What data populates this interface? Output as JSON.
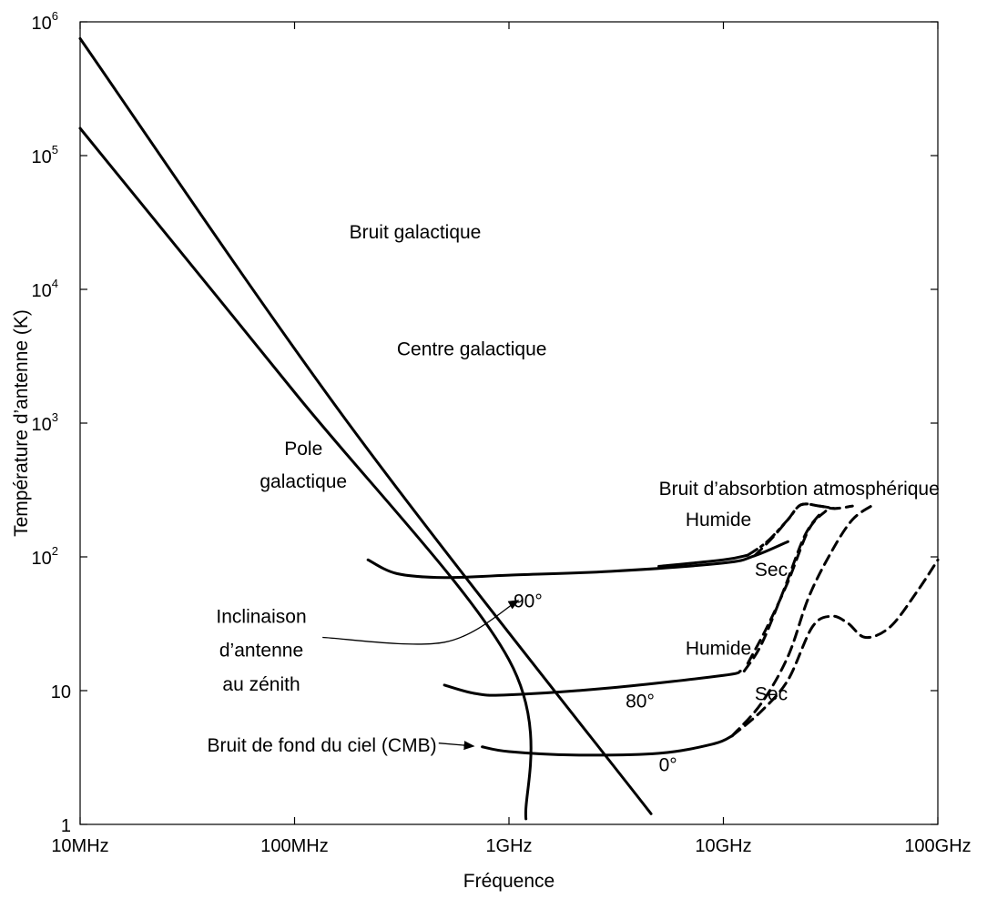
{
  "chart_data": {
    "type": "line",
    "xlabel": "Fréquence",
    "ylabel": "Température d’antenne (K)",
    "x_scale": "log",
    "y_scale": "log",
    "xlim_hz": [
      10000000.0,
      100000000000.0
    ],
    "ylim_k": [
      1,
      1000000.0
    ],
    "grid": false,
    "x_ticks": [
      {
        "value": 10000000.0,
        "label": "10MHz"
      },
      {
        "value": 100000000.0,
        "label": "100MHz"
      },
      {
        "value": 1000000000.0,
        "label": "1GHz"
      },
      {
        "value": 10000000000.0,
        "label": "10GHz"
      },
      {
        "value": 100000000000.0,
        "label": "100GHz"
      }
    ],
    "y_ticks": [
      {
        "value": 1,
        "label": "1",
        "exp": ""
      },
      {
        "value": 10,
        "label": "10",
        "exp": ""
      },
      {
        "value": 100,
        "label": "10",
        "exp": "2"
      },
      {
        "value": 1000,
        "label": "10",
        "exp": "3"
      },
      {
        "value": 10000,
        "label": "10",
        "exp": "4"
      },
      {
        "value": 100000,
        "label": "10",
        "exp": "5"
      },
      {
        "value": 1000000,
        "label": "10",
        "exp": "6"
      }
    ],
    "series": [
      {
        "style": "solid",
        "points": [
          [
            10000000.0,
            750000
          ],
          [
            178000000.0,
            1000
          ],
          [
            4600000000.0,
            1.2
          ]
        ]
      },
      {
        "style": "solid",
        "points": [
          [
            10000000.0,
            160000
          ],
          [
            100000000.0,
            1700
          ],
          [
            1000000000.0,
            17
          ],
          [
            1200000000.0,
            1.1
          ]
        ]
      },
      {
        "style": "solid",
        "points": [
          [
            220000000.0,
            95
          ],
          [
            300000000.0,
            75
          ],
          [
            500000000.0,
            70
          ],
          [
            1000000000.0,
            73
          ],
          [
            3000000000.0,
            78
          ],
          [
            10000000000.0,
            90
          ],
          [
            14000000000.0,
            102
          ],
          [
            20000000000.0,
            130
          ]
        ]
      },
      {
        "style": "solid",
        "points": [
          [
            5000000000.0,
            85
          ],
          [
            10000000000.0,
            95
          ],
          [
            13000000000.0,
            103
          ]
        ]
      },
      {
        "style": "solid",
        "points": [
          [
            500000000.0,
            11
          ],
          [
            700000000.0,
            9.5
          ],
          [
            1000000000.0,
            9.3
          ],
          [
            3000000000.0,
            10.5
          ],
          [
            10000000000.0,
            13
          ],
          [
            12000000000.0,
            14
          ]
        ]
      },
      {
        "style": "solid",
        "points": [
          [
            750000000.0,
            3.8
          ],
          [
            1000000000.0,
            3.5
          ],
          [
            2000000000.0,
            3.3
          ],
          [
            5000000000.0,
            3.4
          ],
          [
            9000000000.0,
            4
          ],
          [
            11000000000.0,
            4.6
          ]
        ]
      },
      {
        "style": "dashed",
        "points": [
          [
            14000000000.0,
            102
          ],
          [
            17000000000.0,
            140
          ],
          [
            20000000000.0,
            190
          ],
          [
            23000000000.0,
            245
          ],
          [
            28000000000.0,
            240
          ],
          [
            33000000000.0,
            230
          ],
          [
            40000000000.0,
            240
          ]
        ]
      },
      {
        "style": "dashdot",
        "points": [
          [
            13000000000.0,
            103
          ],
          [
            16000000000.0,
            130
          ],
          [
            20000000000.0,
            190
          ],
          [
            23000000000.0,
            245
          ],
          [
            28000000000.0,
            240
          ],
          [
            33000000000.0,
            230
          ]
        ]
      },
      {
        "style": "dashed",
        "points": [
          [
            13000000000.0,
            16
          ],
          [
            16000000000.0,
            30
          ],
          [
            20000000000.0,
            65
          ],
          [
            25000000000.0,
            160
          ],
          [
            30000000000.0,
            220
          ]
        ]
      },
      {
        "style": "dashed",
        "points": [
          [
            12500000000.0,
            14
          ],
          [
            15000000000.0,
            22
          ],
          [
            19000000000.0,
            55
          ],
          [
            24000000000.0,
            145
          ],
          [
            29000000000.0,
            220
          ]
        ]
      },
      {
        "style": "dashed",
        "points": [
          [
            11000000000.0,
            4.6
          ],
          [
            15000000000.0,
            7
          ],
          [
            20000000000.0,
            12
          ],
          [
            26000000000.0,
            30
          ],
          [
            32000000000.0,
            36
          ],
          [
            38000000000.0,
            32
          ],
          [
            46000000000.0,
            25
          ],
          [
            60000000000.0,
            30
          ],
          [
            80000000000.0,
            55
          ],
          [
            100000000000.0,
            95
          ]
        ]
      },
      {
        "style": "dashed",
        "points": [
          [
            11000000000.0,
            4.6
          ],
          [
            15000000000.0,
            8
          ],
          [
            20000000000.0,
            18
          ],
          [
            25000000000.0,
            50
          ],
          [
            32000000000.0,
            110
          ],
          [
            40000000000.0,
            190
          ],
          [
            50000000000.0,
            245
          ]
        ]
      }
    ],
    "annotations": [
      {
        "text": "Bruit galactique",
        "x": 180000000.0,
        "y": 24000,
        "anchor": "start"
      },
      {
        "text": "Centre galactique",
        "x": 300000000.0,
        "y": 3200,
        "anchor": "start"
      },
      {
        "text": "Pole",
        "x": 110000000.0,
        "y": 580,
        "anchor": "middle"
      },
      {
        "text": "galactique",
        "x": 110000000.0,
        "y": 330,
        "anchor": "middle"
      },
      {
        "text": "Bruit d’absorbtion atmosphérique",
        "x": 5000000000.0,
        "y": 290,
        "anchor": "start"
      },
      {
        "text": "Humide",
        "x": 13500000000.0,
        "y": 170,
        "anchor": "end"
      },
      {
        "text": "Sec",
        "x": 14000000000.0,
        "y": 72,
        "anchor": "start"
      },
      {
        "text": "90°",
        "x": 1050000000.0,
        "y": 42,
        "anchor": "start"
      },
      {
        "text": "Inclinaison",
        "x": 70000000.0,
        "y": 32,
        "anchor": "middle"
      },
      {
        "text": "d’antenne",
        "x": 70000000.0,
        "y": 18,
        "anchor": "middle"
      },
      {
        "text": "au zénith",
        "x": 70000000.0,
        "y": 10,
        "anchor": "middle"
      },
      {
        "text": "Humide",
        "x": 13500000000.0,
        "y": 18.5,
        "anchor": "end"
      },
      {
        "text": "Sec",
        "x": 14000000000.0,
        "y": 8.5,
        "anchor": "start"
      },
      {
        "text": "80°",
        "x": 3500000000.0,
        "y": 7.5,
        "anchor": "start"
      },
      {
        "text": "Bruit de fond du ciel (CMB)",
        "x": 460000000.0,
        "y": 3.5,
        "anchor": "end"
      },
      {
        "text": "0°",
        "x": 5000000000.0,
        "y": 2.5,
        "anchor": "start"
      }
    ],
    "arrows": [
      {
        "path": [
          [
            135000000.0,
            25
          ],
          [
            500000000.0,
            23
          ],
          [
            1100000000.0,
            47
          ]
        ]
      },
      {
        "path": [
          [
            470000000.0,
            4.05
          ],
          [
            680000000.0,
            3.85
          ]
        ]
      }
    ]
  }
}
